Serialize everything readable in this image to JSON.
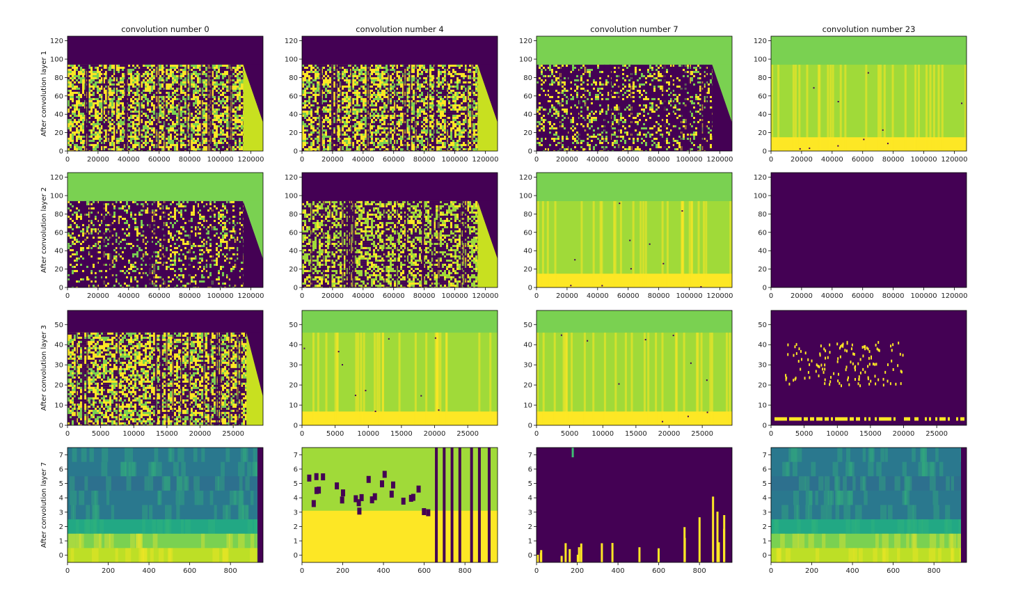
{
  "chart_data": {
    "type": "heatmap",
    "colormap": "viridis",
    "column_titles": [
      "convolution number 0",
      "convolution number 4",
      "convolution number 7",
      "convolution number 23"
    ],
    "row_labels": [
      "After convolution layer 1",
      "After convolution layer 2",
      "After convolution layer 3",
      "After convolution layer 7"
    ],
    "rows": [
      {
        "xlim": [
          0,
          128000
        ],
        "ylim": [
          0,
          125
        ],
        "xticks": [
          0,
          20000,
          40000,
          60000,
          80000,
          100000,
          120000
        ],
        "yticks": [
          0,
          20,
          40,
          60,
          80,
          100,
          120
        ],
        "active_height": 94,
        "tail_start": 115000
      },
      {
        "xlim": [
          0,
          128000
        ],
        "ylim": [
          0,
          125
        ],
        "xticks": [
          0,
          20000,
          40000,
          60000,
          80000,
          100000,
          120000
        ],
        "yticks": [
          0,
          20,
          40,
          60,
          80,
          100,
          120
        ],
        "active_height": 94,
        "tail_start": 115000
      },
      {
        "xlim": [
          0,
          29500
        ],
        "ylim": [
          0,
          57
        ],
        "xticks": [
          0,
          5000,
          10000,
          15000,
          20000,
          25000
        ],
        "yticks": [
          0,
          10,
          20,
          30,
          40,
          50
        ],
        "active_height": 46,
        "tail_start": 27000
      },
      {
        "xlim": [
          0,
          960
        ],
        "ylim": [
          -0.5,
          7.5
        ],
        "xticks": [
          0,
          200,
          400,
          600,
          800
        ],
        "yticks": [
          0,
          1,
          2,
          3,
          4,
          5,
          6,
          7
        ],
        "active_height": 7.5,
        "tail_start": 940
      }
    ],
    "cells": [
      [
        "speckle_bright",
        "speckle_bright",
        "speckle_dark",
        "smooth_bright"
      ],
      [
        "speckle_dark",
        "speckle_mid",
        "smooth_bright",
        "uniform_dark"
      ],
      [
        "speckle_bright",
        "smooth_bright",
        "smooth_bright",
        "sparse"
      ],
      [
        "gradient",
        "blocky",
        "sparse_bars",
        "gradient"
      ]
    ],
    "colors": {
      "dark": "#440154",
      "mid": "#21918c",
      "green": "#7ad151",
      "light_green": "#a0da39",
      "yellow": "#fde725",
      "yellow_green": "#c8e020"
    }
  }
}
